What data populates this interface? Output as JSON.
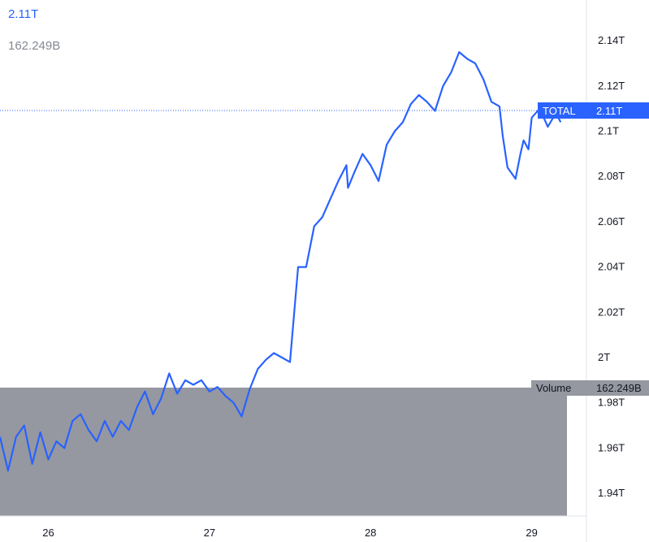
{
  "header": {
    "value": "2.11T",
    "volume": "162.249B"
  },
  "colors": {
    "line": "#2962ff",
    "volume_area": "#9598a1",
    "label_bg": "#2962ff",
    "volume_label_bg": "#9598a1"
  },
  "price_label": {
    "name": "TOTAL",
    "value": "2.11T"
  },
  "volume_label": {
    "name": "Volume",
    "value": "162.249B"
  },
  "chart_data": {
    "type": "area",
    "title": "",
    "series": [
      {
        "name": "TOTAL",
        "x": [
          25.7,
          25.75,
          25.8,
          25.85,
          25.9,
          25.95,
          26.0,
          26.05,
          26.1,
          26.15,
          26.2,
          26.25,
          26.3,
          26.35,
          26.4,
          26.45,
          26.5,
          26.55,
          26.6,
          26.65,
          26.7,
          26.75,
          26.8,
          26.85,
          26.9,
          26.95,
          27.0,
          27.05,
          27.1,
          27.15,
          27.2,
          27.25,
          27.3,
          27.35,
          27.4,
          27.45,
          27.5,
          27.55,
          27.6,
          27.65,
          27.7,
          27.75,
          27.8,
          27.85,
          27.86,
          27.9,
          27.95,
          28.0,
          28.05,
          28.1,
          28.15,
          28.2,
          28.25,
          28.3,
          28.35,
          28.4,
          28.45,
          28.5,
          28.55,
          28.6,
          28.65,
          28.7,
          28.75,
          28.8,
          28.82,
          28.85,
          28.9,
          28.93,
          28.95,
          28.98,
          29.0,
          29.05,
          29.1,
          29.15,
          29.18
        ],
        "values": [
          1.965,
          1.95,
          1.965,
          1.97,
          1.953,
          1.967,
          1.955,
          1.963,
          1.96,
          1.972,
          1.975,
          1.968,
          1.963,
          1.972,
          1.965,
          1.972,
          1.968,
          1.978,
          1.985,
          1.975,
          1.982,
          1.993,
          1.984,
          1.99,
          1.988,
          1.99,
          1.985,
          1.987,
          1.983,
          1.98,
          1.974,
          1.986,
          1.995,
          1.999,
          2.002,
          2.0,
          1.998,
          2.04,
          2.04,
          2.058,
          2.062,
          2.07,
          2.078,
          2.085,
          2.075,
          2.082,
          2.09,
          2.085,
          2.078,
          2.094,
          2.1,
          2.104,
          2.112,
          2.116,
          2.113,
          2.109,
          2.12,
          2.126,
          2.135,
          2.132,
          2.13,
          2.123,
          2.113,
          2.111,
          2.098,
          2.084,
          2.079,
          2.09,
          2.096,
          2.092,
          2.106,
          2.11,
          2.102,
          2.108,
          2.104
        ]
      }
    ],
    "y_ticks": [
      "2.14T",
      "2.12T",
      "2.1T",
      "2.08T",
      "2.06T",
      "2.04T",
      "2.02T",
      "2T",
      "1.98T",
      "1.96T",
      "1.94T"
    ],
    "x_ticks": [
      "26",
      "27",
      "28",
      "29"
    ],
    "ylim": [
      1.93,
      2.158
    ],
    "xlim": [
      25.7,
      29.34
    ],
    "current_value": 2.11,
    "volume": "162.249B",
    "grid": false,
    "legend": "none"
  }
}
